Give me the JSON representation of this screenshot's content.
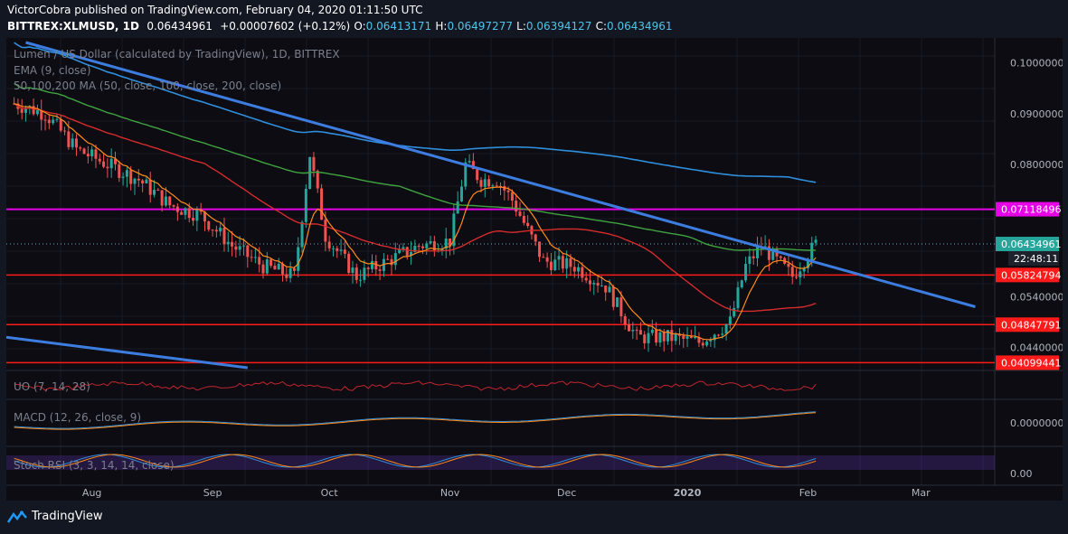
{
  "header": {
    "line1": "VictorCobra published on TradingView.com, February 04, 2020 01:11:50 UTC",
    "symbol": "BITTREX:XLMUSD, 1D",
    "last": "0.06434961",
    "change": "+0.00007602 (+0.12%)",
    "o_label": "O:",
    "o": "0.06413171",
    "h_label": "H:",
    "h": "0.06497277",
    "l_label": "L:",
    "l": "0.06394127",
    "c_label": "C:",
    "c": "0.06434961"
  },
  "legend": {
    "title": "Lumen / US Dollar (calculated by TradingView), 1D, BITTREX",
    "ema": "EMA (9, close)",
    "ma": "50,100,200 MA (50, close, 100, close, 200, close)"
  },
  "indicators": {
    "uo": "UO (7, 14, 28)",
    "macd": "MACD (12, 26, close, 9)",
    "stoch": "Stoch RSI (3, 3, 14, 14, close)"
  },
  "price_axis": {
    "ticks": [
      "0.10000000",
      "0.09000000",
      "0.08000000",
      "0.05400000",
      "0.04400000"
    ],
    "macd_tick": "0.00000000",
    "stoch_tick": "0.00"
  },
  "tags": {
    "level_071": "0.07118496",
    "current": "0.06434961",
    "countdown": "22:48:11",
    "level_058": "0.05824794",
    "level_048": "0.04847791",
    "level_041": "0.04099441"
  },
  "time_axis": [
    "Aug",
    "Sep",
    "Oct",
    "Nov",
    "Dec",
    "2020",
    "Feb",
    "Mar"
  ],
  "brand": "TradingView",
  "colors": {
    "horizontal_level": "#ff1a1a",
    "resistance_level": "#e600e6",
    "trendline": "#3d7de0",
    "ema": "#ff8c1a",
    "ma50": "#d62c2c",
    "ma100": "#3fa33f",
    "ma200": "#2f8fdc",
    "up": "#26a69a",
    "down": "#ef5350"
  },
  "chart_data": {
    "type": "candlestick",
    "symbol": "BITTREX:XLMUSD",
    "interval": "1D",
    "x_range": [
      "2019-07-10",
      "2020-03-20"
    ],
    "y_range": [
      0.04,
      0.104
    ],
    "horizontal_levels": [
      0.07118496,
      0.05824794,
      0.04847791,
      0.04099441
    ],
    "current_price": 0.06434961,
    "trendlines": [
      {
        "from": [
          "2019-07-15",
          0.104
        ],
        "to": [
          "2020-03-15",
          0.052
        ]
      },
      {
        "from": [
          "2019-07-10",
          0.046
        ],
        "to": [
          "2019-09-10",
          0.04
        ]
      }
    ],
    "close_series": [
      [
        "2019-07-12",
        0.092
      ],
      [
        "2019-07-20",
        0.09
      ],
      [
        "2019-07-28",
        0.083
      ],
      [
        "2019-08-05",
        0.08
      ],
      [
        "2019-08-13",
        0.077
      ],
      [
        "2019-08-21",
        0.072
      ],
      [
        "2019-08-29",
        0.07
      ],
      [
        "2019-09-06",
        0.064
      ],
      [
        "2019-09-14",
        0.06
      ],
      [
        "2019-09-22",
        0.058
      ],
      [
        "2019-09-26",
        0.082
      ],
      [
        "2019-09-30",
        0.066
      ],
      [
        "2019-10-08",
        0.058
      ],
      [
        "2019-10-16",
        0.061
      ],
      [
        "2019-10-24",
        0.064
      ],
      [
        "2019-11-01",
        0.065
      ],
      [
        "2019-11-05",
        0.08
      ],
      [
        "2019-11-09",
        0.077
      ],
      [
        "2019-11-13",
        0.077
      ],
      [
        "2019-11-17",
        0.073
      ],
      [
        "2019-11-25",
        0.061
      ],
      [
        "2019-12-03",
        0.06
      ],
      [
        "2019-12-11",
        0.056
      ],
      [
        "2019-12-19",
        0.046
      ],
      [
        "2019-12-27",
        0.046
      ],
      [
        "2020-01-04",
        0.045
      ],
      [
        "2020-01-12",
        0.049
      ],
      [
        "2020-01-16",
        0.06
      ],
      [
        "2020-01-20",
        0.064
      ],
      [
        "2020-01-24",
        0.061
      ],
      [
        "2020-01-28",
        0.058
      ],
      [
        "2020-02-03",
        0.06434961
      ]
    ]
  }
}
